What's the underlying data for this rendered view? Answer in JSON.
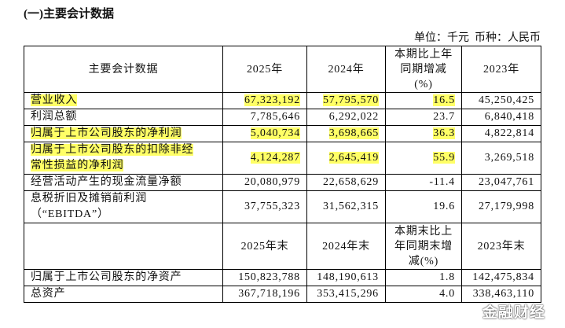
{
  "title": "(一)主要会计数据",
  "unit": "单位：千元  币种：人民币",
  "table": {
    "header": [
      "主要会计数据",
      "2025年",
      "2024年",
      "本期比上年\n同期增减\n(%)",
      "2023年"
    ],
    "rows": [
      [
        "营业收入",
        "67,323,192",
        "57,795,570",
        "16.5",
        "45,250,425"
      ],
      [
        "利润总额",
        "7,785,646",
        "6,292,022",
        "23.7",
        "6,840,418"
      ],
      [
        "归属于上市公司股东的净利润",
        "5,040,734",
        "3,698,665",
        "36.3",
        "4,822,814"
      ],
      [
        "归属于上市公司股东的扣除非经\n常性损益的净利润",
        "4,124,287",
        "2,645,419",
        "55.9",
        "3,269,518"
      ],
      [
        "经营活动产生的现金流量净额",
        "20,080,979",
        "22,658,629",
        "-11.4",
        "23,047,761"
      ],
      [
        "息税折旧及摊销前利润\n（“EBITDA”）",
        "37,755,323",
        "31,562,315",
        "19.6",
        "27,179,998"
      ]
    ],
    "header2": [
      "2025年末",
      "2024年末",
      "本期末比上\n年同期末增\n减(%)",
      "2023年末"
    ],
    "rows2": [
      [
        "归属于上市公司股东的净资产",
        "150,823,788",
        "148,190,613",
        "1.8",
        "142,475,834"
      ],
      [
        "总资产",
        "367,718,196",
        "353,415,296",
        "4.0",
        "338,463,110"
      ]
    ]
  },
  "watermark": "金融财经"
}
